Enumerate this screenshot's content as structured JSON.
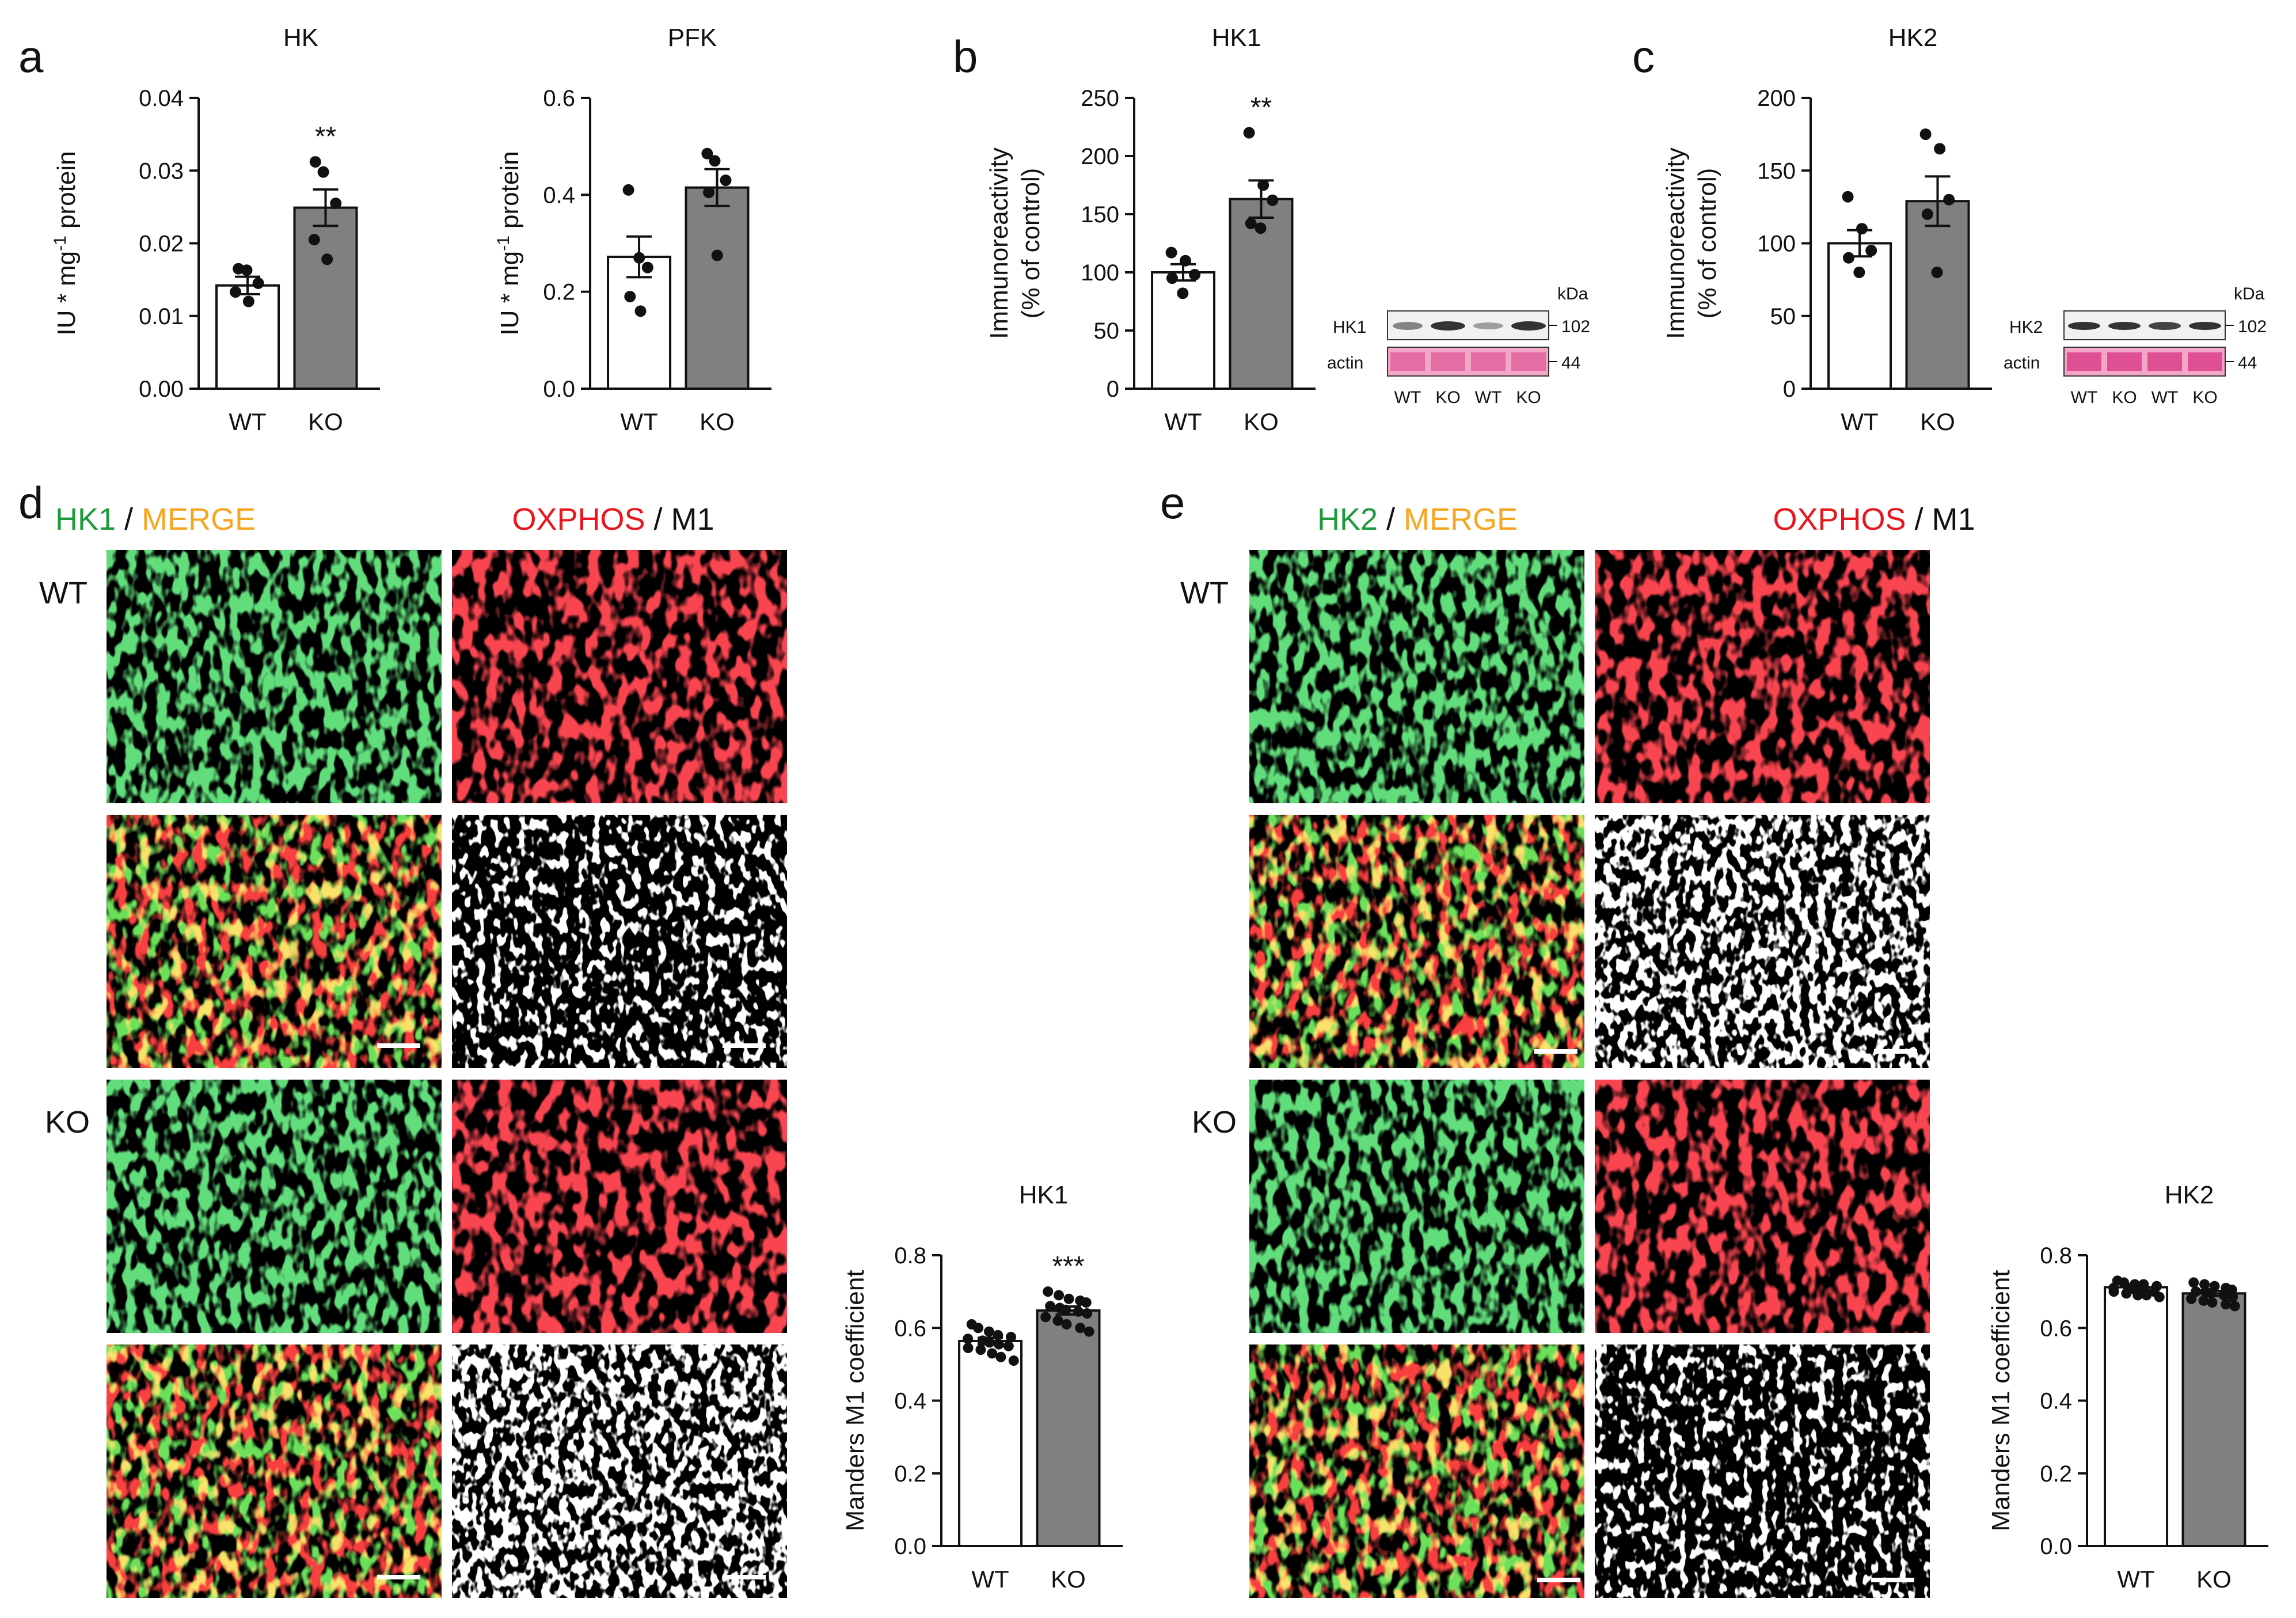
{
  "panel_labels": {
    "a": "a",
    "b": "b",
    "c": "c",
    "d": "d",
    "e": "e"
  },
  "colors": {
    "wt_fill": "#ffffff",
    "ko_fill": "#808080",
    "axis": "#111111",
    "green": "#1e9a3c",
    "orange": "#f6a623",
    "red": "#e8161c",
    "white": "#ffffff"
  },
  "chart_data": [
    {
      "id": "hk",
      "type": "bar",
      "title": "HK",
      "ylabel": [
        "IU * mg",
        "-1",
        " protein"
      ],
      "categories": [
        "WT",
        "KO"
      ],
      "values": [
        0.0142,
        0.0249
      ],
      "errors": [
        0.0012,
        0.0025
      ],
      "points": [
        [
          0.0165,
          0.0163,
          0.0145,
          0.0133,
          0.012
        ],
        [
          0.0312,
          0.0298,
          0.0255,
          0.0205,
          0.0178
        ]
      ],
      "ylim": [
        0,
        0.04
      ],
      "yticks": [
        0,
        0.01,
        0.02,
        0.03,
        0.04
      ],
      "yticklabels": [
        "0.00",
        "0.01",
        "0.02",
        "0.03",
        "0.04"
      ],
      "significance": [
        "",
        "**"
      ]
    },
    {
      "id": "pfk",
      "type": "bar",
      "title": "PFK",
      "ylabel": [
        "IU * mg",
        "-1",
        " protein"
      ],
      "categories": [
        "WT",
        "KO"
      ],
      "values": [
        0.272,
        0.415
      ],
      "errors": [
        0.042,
        0.038
      ],
      "points": [
        [
          0.41,
          0.27,
          0.25,
          0.19,
          0.16
        ],
        [
          0.485,
          0.47,
          0.43,
          0.405,
          0.275
        ]
      ],
      "ylim": [
        0,
        0.6
      ],
      "yticks": [
        0,
        0.2,
        0.4,
        0.6
      ],
      "yticklabels": [
        "0.0",
        "0.2",
        "0.4",
        "0.6"
      ],
      "significance": [
        "",
        ""
      ]
    },
    {
      "id": "hk1_immuno",
      "type": "bar",
      "title": "HK1",
      "ylabel": [
        "Immunoreactivity",
        "(% of control)"
      ],
      "categories": [
        "WT",
        "KO"
      ],
      "values": [
        100,
        163
      ],
      "errors": [
        7,
        16
      ],
      "points": [
        [
          117,
          110,
          98,
          95,
          82
        ],
        [
          220,
          175,
          162,
          142,
          138
        ]
      ],
      "ylim": [
        0,
        250
      ],
      "yticks": [
        0,
        50,
        100,
        150,
        200,
        250
      ],
      "yticklabels": [
        "0",
        "50",
        "100",
        "150",
        "200",
        "250"
      ],
      "significance": [
        "",
        "**"
      ]
    },
    {
      "id": "hk2_immuno",
      "type": "bar",
      "title": "HK2",
      "ylabel": [
        "Immunoreactivity",
        "(% of control)"
      ],
      "categories": [
        "WT",
        "KO"
      ],
      "values": [
        100,
        129
      ],
      "errors": [
        9,
        17
      ],
      "points": [
        [
          132,
          110,
          95,
          90,
          80
        ],
        [
          175,
          165,
          130,
          120,
          80
        ]
      ],
      "ylim": [
        0,
        200
      ],
      "yticks": [
        0,
        50,
        100,
        150,
        200
      ],
      "yticklabels": [
        "0",
        "50",
        "100",
        "150",
        "200"
      ],
      "significance": [
        "",
        ""
      ]
    },
    {
      "id": "hk1_manders",
      "type": "bar",
      "title": "HK1",
      "ylabel": [
        "Manders M1 coefficient"
      ],
      "categories": [
        "WT",
        "KO"
      ],
      "values": [
        0.564,
        0.648
      ],
      "errors": [
        0.009,
        0.011
      ],
      "points": [
        [
          0.61,
          0.6,
          0.59,
          0.58,
          0.575,
          0.57,
          0.565,
          0.56,
          0.555,
          0.55,
          0.545,
          0.54,
          0.53,
          0.52,
          0.51
        ],
        [
          0.7,
          0.69,
          0.68,
          0.675,
          0.67,
          0.66,
          0.655,
          0.65,
          0.645,
          0.64,
          0.63,
          0.62,
          0.61,
          0.6,
          0.59
        ]
      ],
      "ylim": [
        0,
        0.8
      ],
      "yticks": [
        0,
        0.2,
        0.4,
        0.6,
        0.8
      ],
      "yticklabels": [
        "0.0",
        "0.2",
        "0.4",
        "0.6",
        "0.8"
      ],
      "significance": [
        "",
        "***"
      ]
    },
    {
      "id": "hk2_manders",
      "type": "bar",
      "title": "HK2",
      "ylabel": [
        "Manders M1 coefficient"
      ],
      "categories": [
        "WT",
        "KO"
      ],
      "values": [
        0.712,
        0.695
      ],
      "errors": [
        0.005,
        0.007
      ],
      "points": [
        [
          0.73,
          0.725,
          0.72,
          0.72,
          0.715,
          0.71,
          0.71,
          0.705,
          0.705,
          0.7,
          0.7,
          0.695,
          0.69,
          0.69,
          0.685
        ],
        [
          0.725,
          0.72,
          0.715,
          0.71,
          0.705,
          0.7,
          0.7,
          0.695,
          0.69,
          0.685,
          0.68,
          0.675,
          0.67,
          0.665,
          0.66
        ]
      ],
      "ylim": [
        0,
        0.8
      ],
      "yticks": [
        0,
        0.2,
        0.4,
        0.6,
        0.8
      ],
      "yticklabels": [
        "0.0",
        "0.2",
        "0.4",
        "0.6",
        "0.8"
      ],
      "significance": [
        "",
        ""
      ]
    }
  ],
  "blots": {
    "hk1": {
      "kda": "kDa",
      "band_label": "HK1",
      "band_kda": "102",
      "actin_label": "actin",
      "actin_kda": "44",
      "lanes": [
        "WT",
        "KO",
        "WT",
        "KO"
      ]
    },
    "hk2": {
      "kda": "kDa",
      "band_label": "HK2",
      "band_kda": "102",
      "actin_label": "actin",
      "actin_kda": "44",
      "lanes": [
        "WT",
        "KO",
        "WT",
        "KO"
      ]
    }
  },
  "micrographs": {
    "d": {
      "left_a": "HK1",
      "sep1": " / ",
      "left_b": "MERGE",
      "right_a": "OXPHOS",
      "sep2": " / ",
      "right_b": "M1",
      "row_wt": "WT",
      "row_ko": "KO"
    },
    "e": {
      "left_a": "HK2",
      "sep1": " / ",
      "left_b": "MERGE",
      "right_a": "OXPHOS",
      "sep2": " / ",
      "right_b": "M1",
      "row_wt": "WT",
      "row_ko": "KO"
    }
  }
}
